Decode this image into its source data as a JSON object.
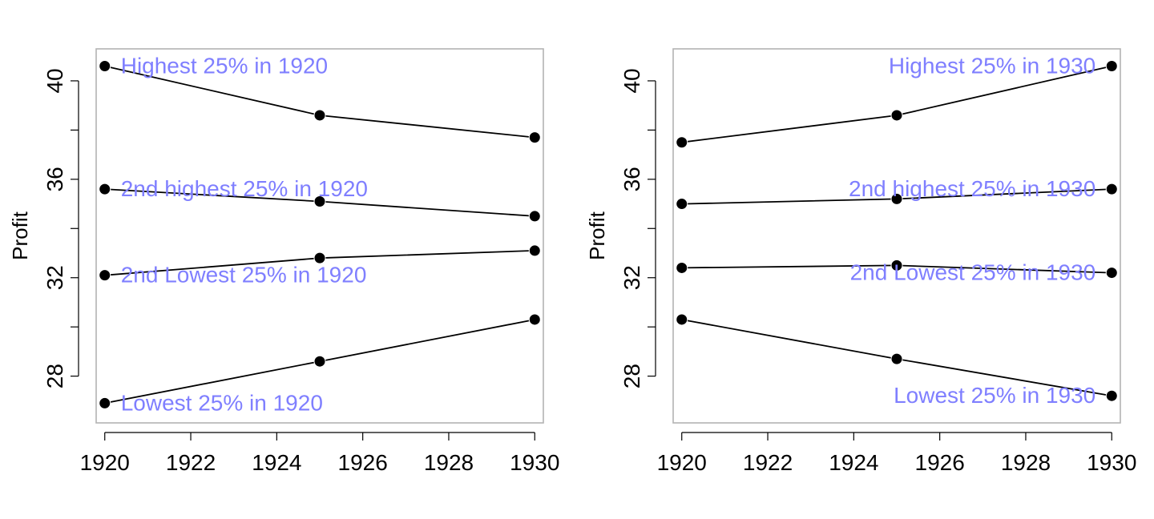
{
  "chart_data": [
    {
      "type": "line",
      "ylabel": "Profit",
      "xlim": [
        1919.8,
        1930.2
      ],
      "ylim": [
        26.1,
        41.3
      ],
      "xticks": [
        1920,
        1922,
        1924,
        1926,
        1928,
        1930
      ],
      "yticks_labeled": [
        28,
        32,
        36,
        40
      ],
      "yticks_minor": [
        30,
        34,
        38
      ],
      "grid": false,
      "label_color": "#7f7fff",
      "x": [
        1920,
        1925,
        1930
      ],
      "series": [
        {
          "label": "Highest 25% in 1920",
          "values": [
            40.6,
            38.6,
            37.7
          ],
          "label_at": "start"
        },
        {
          "label": "2nd highest 25% in 1920",
          "values": [
            35.6,
            35.1,
            34.5
          ],
          "label_at": "start"
        },
        {
          "label": "2nd Lowest 25% in 1920",
          "values": [
            32.1,
            32.8,
            33.1
          ],
          "label_at": "start"
        },
        {
          "label": "Lowest 25% in 1920",
          "values": [
            26.9,
            28.6,
            30.3
          ],
          "label_at": "start"
        }
      ]
    },
    {
      "type": "line",
      "ylabel": "Profit",
      "xlim": [
        1919.8,
        1930.2
      ],
      "ylim": [
        26.1,
        41.3
      ],
      "xticks": [
        1920,
        1922,
        1924,
        1926,
        1928,
        1930
      ],
      "yticks_labeled": [
        28,
        32,
        36,
        40
      ],
      "yticks_minor": [
        30,
        34,
        38
      ],
      "grid": false,
      "label_color": "#7f7fff",
      "x": [
        1920,
        1925,
        1930
      ],
      "series": [
        {
          "label": "Highest 25% in 1930",
          "values": [
            37.5,
            38.6,
            40.6
          ],
          "label_at": "end"
        },
        {
          "label": "2nd highest 25% in 1930",
          "values": [
            35.0,
            35.2,
            35.6
          ],
          "label_at": "end"
        },
        {
          "label": "2nd Lowest 25% in 1930",
          "values": [
            32.4,
            32.5,
            32.2
          ],
          "label_at": "end"
        },
        {
          "label": "Lowest 25% in 1930",
          "values": [
            30.3,
            28.7,
            27.2
          ],
          "label_at": "end"
        }
      ]
    }
  ]
}
